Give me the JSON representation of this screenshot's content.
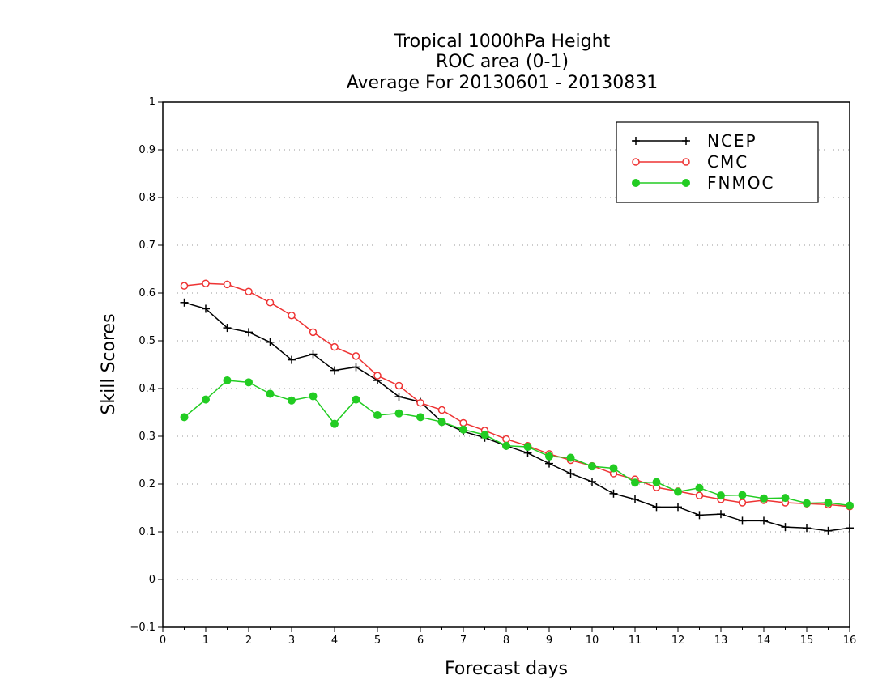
{
  "chart_data": {
    "type": "line",
    "title_lines": [
      "Tropical 1000hPa Height",
      "ROC area (0-1)",
      "Average For 20130601 - 20130831"
    ],
    "xlabel": "Forecast days",
    "ylabel": "Skill Scores",
    "xlim": [
      0,
      16
    ],
    "ylim": [
      -0.1,
      1
    ],
    "xticks": [
      "0",
      "1",
      "2",
      "3",
      "4",
      "5",
      "6",
      "7",
      "8",
      "9",
      "10",
      "11",
      "12",
      "13",
      "14",
      "15",
      "16"
    ],
    "yticks": [
      "−0.1",
      "0",
      "0.1",
      "0.2",
      "0.3",
      "0.4",
      "0.5",
      "0.6",
      "0.7",
      "0.8",
      "0.9",
      "1"
    ],
    "grid": "horizontal dotted",
    "legend_position": "top-right",
    "x": [
      0.5,
      1,
      1.5,
      2,
      2.5,
      3,
      3.5,
      4,
      4.5,
      5,
      5.5,
      6,
      6.5,
      7,
      7.5,
      8,
      8.5,
      9,
      9.5,
      10,
      10.5,
      11,
      11.5,
      12,
      12.5,
      13,
      13.5,
      14,
      14.5,
      15,
      15.5,
      16
    ],
    "series": [
      {
        "name": "NCEP",
        "color": "#000000",
        "marker": "plus",
        "values": [
          0.58,
          0.567,
          0.527,
          0.518,
          0.497,
          0.46,
          0.472,
          0.438,
          0.445,
          0.417,
          0.383,
          0.372,
          0.33,
          0.31,
          0.297,
          0.28,
          0.265,
          0.243,
          0.222,
          0.205,
          0.18,
          0.168,
          0.152,
          0.152,
          0.135,
          0.137,
          0.123,
          0.123,
          0.11,
          0.108,
          0.102,
          0.108
        ]
      },
      {
        "name": "CMC",
        "color": "#ee3333",
        "marker": "open-circle",
        "values": [
          0.615,
          0.62,
          0.618,
          0.603,
          0.58,
          0.553,
          0.518,
          0.487,
          0.468,
          0.427,
          0.406,
          0.37,
          0.355,
          0.328,
          0.312,
          0.294,
          0.28,
          0.263,
          0.25,
          0.238,
          0.222,
          0.21,
          0.193,
          0.185,
          0.176,
          0.168,
          0.161,
          0.166,
          0.161,
          0.159,
          0.157,
          0.153
        ]
      },
      {
        "name": "FNMOC",
        "color": "#22cc22",
        "marker": "filled-circle",
        "values": [
          0.34,
          0.377,
          0.417,
          0.413,
          0.389,
          0.375,
          0.384,
          0.326,
          0.377,
          0.344,
          0.348,
          0.34,
          0.33,
          0.314,
          0.303,
          0.28,
          0.278,
          0.258,
          0.255,
          0.237,
          0.233,
          0.203,
          0.204,
          0.184,
          0.192,
          0.176,
          0.177,
          0.17,
          0.171,
          0.16,
          0.161,
          0.155
        ]
      }
    ]
  }
}
